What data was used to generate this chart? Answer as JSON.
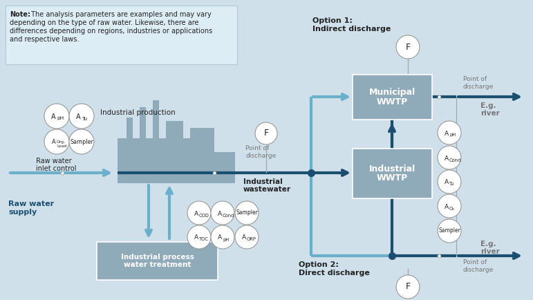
{
  "bg_color": "#cfe0ea",
  "note_bg": "#ddedf5",
  "note_border": "#b0c8d8",
  "box_color": "#8faab8",
  "box_edge": "#ffffff",
  "arrow_dark": "#1b4f72",
  "arrow_light": "#6ab0cc",
  "circle_bg": "#ffffff",
  "circle_edge": "#999999",
  "text_dark": "#222222",
  "text_gray": "#777777",
  "factory_color": "#8faab8",
  "note_line1_bold": "Note:",
  "note_line1_rest": " The analysis parameters are examples and may vary",
  "note_line2": "depending on the type of raw water. Likewise, there are",
  "note_line3": "differences depending on regions, industries or applications",
  "note_line4": "and respective laws.",
  "option1_label": "Option 1:",
  "option1_sub": "Indirect discharge",
  "option2_label": "Option 2:",
  "option2_sub": "Direct discharge",
  "muni_line1": "Municipal",
  "muni_line2": "WWTP",
  "ind_line1": "Industrial",
  "ind_line2": "WWTP",
  "proc_line1": "Industrial process",
  "proc_line2": "water treatment",
  "ind_prod": "Industrial production",
  "raw_inlet1": "Raw water",
  "raw_inlet2": "inlet control",
  "raw_supply1": "Raw water",
  "raw_supply2": "supply",
  "pod_mid1": "Point of",
  "pod_mid2": "discharge",
  "ind_ww1": "Industrial",
  "ind_ww2": "wastewater",
  "pod_top1": "Point of",
  "pod_top2": "discharge",
  "pod_bot1": "Point of",
  "pod_bot2": "discharge",
  "eg_river": "E.g.",
  "river": "river"
}
